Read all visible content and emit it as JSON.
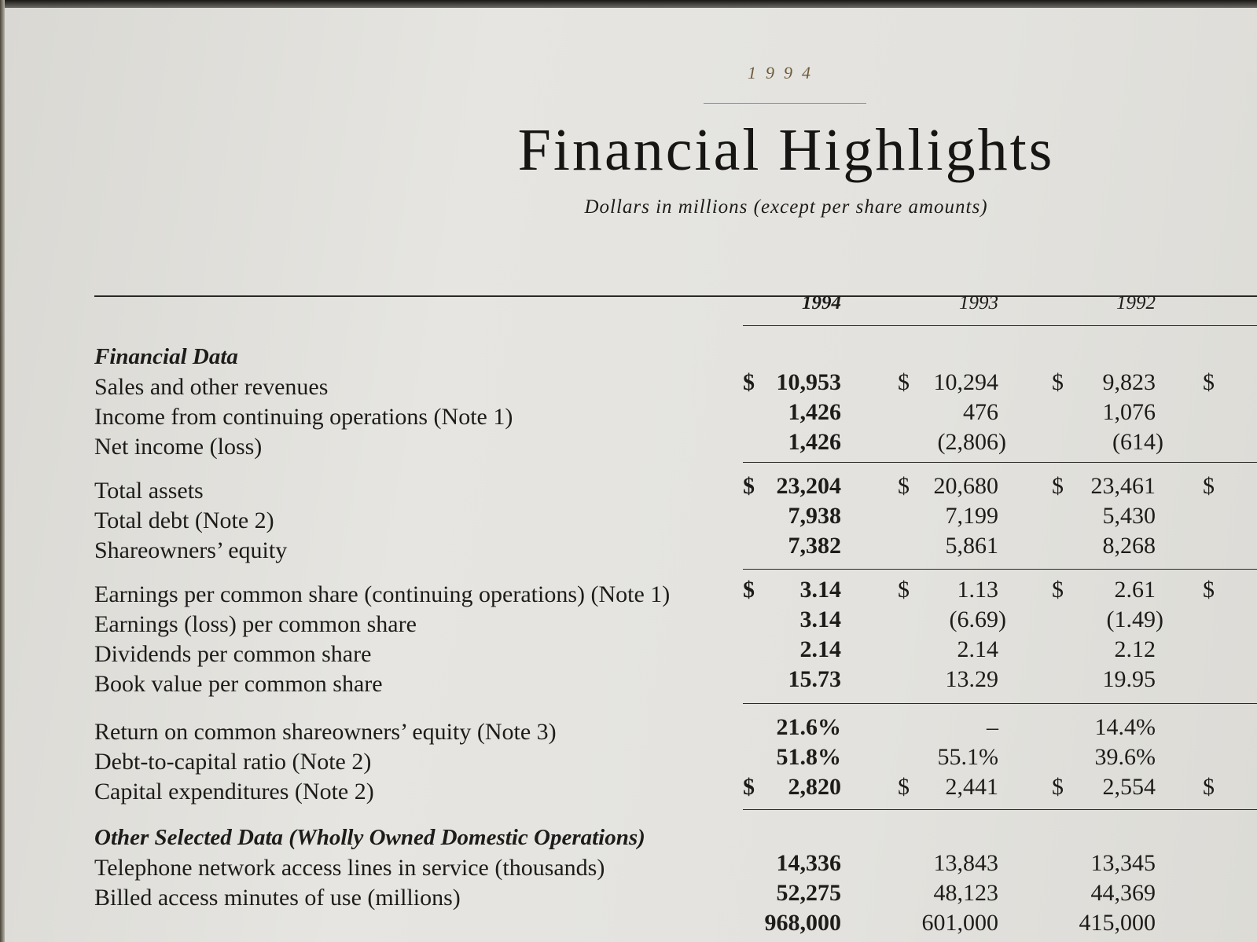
{
  "header": {
    "year": "1994",
    "title": "Financial Highlights",
    "subtitle": "Dollars in millions (except per share amounts)"
  },
  "table": {
    "columns": [
      "1994",
      "1993",
      "1992"
    ],
    "groups": [
      {
        "heading": "Financial Data",
        "rows": [
          {
            "label": "Sales and other revenues",
            "cells": [
              {
                "currency": "$",
                "amount": "10,953"
              },
              {
                "currency": "$",
                "amount": "10,294"
              },
              {
                "currency": "$",
                "amount": "9,823"
              },
              {
                "currency": "$"
              }
            ]
          },
          {
            "label": "Income from continuing operations (Note 1)",
            "cells": [
              {
                "amount": "1,426"
              },
              {
                "amount": "476"
              },
              {
                "amount": "1,076"
              }
            ]
          },
          {
            "label": "Net income (loss)",
            "cells": [
              {
                "amount": "1,426"
              },
              {
                "amount": "(2,806)"
              },
              {
                "amount": "(614)"
              }
            ]
          }
        ]
      },
      {
        "rows": [
          {
            "label": "Total assets",
            "cells": [
              {
                "currency": "$",
                "amount": "23,204"
              },
              {
                "currency": "$",
                "amount": "20,680"
              },
              {
                "currency": "$",
                "amount": "23,461"
              },
              {
                "currency": "$"
              }
            ]
          },
          {
            "label": "Total debt (Note 2)",
            "cells": [
              {
                "amount": "7,938"
              },
              {
                "amount": "7,199"
              },
              {
                "amount": "5,430"
              }
            ]
          },
          {
            "label": "Shareowners’ equity",
            "cells": [
              {
                "amount": "7,382"
              },
              {
                "amount": "5,861"
              },
              {
                "amount": "8,268"
              }
            ]
          }
        ]
      },
      {
        "rows": [
          {
            "label": "Earnings per common share (continuing operations) (Note 1)",
            "cells": [
              {
                "currency": "$",
                "amount": "3.14"
              },
              {
                "currency": "$",
                "amount": "1.13"
              },
              {
                "currency": "$",
                "amount": "2.61"
              },
              {
                "currency": "$"
              }
            ]
          },
          {
            "label": "Earnings (loss) per common share",
            "cells": [
              {
                "amount": "3.14"
              },
              {
                "amount": "(6.69)"
              },
              {
                "amount": "(1.49)"
              }
            ]
          },
          {
            "label": "Dividends per common share",
            "cells": [
              {
                "amount": "2.14"
              },
              {
                "amount": "2.14"
              },
              {
                "amount": "2.12"
              }
            ]
          },
          {
            "label": "Book value per common share",
            "cells": [
              {
                "amount": "15.73"
              },
              {
                "amount": "13.29"
              },
              {
                "amount": "19.95"
              }
            ]
          }
        ]
      },
      {
        "rows": [
          {
            "label": "Return on common shareowners’ equity (Note 3)",
            "cells": [
              {
                "amount": "21.6%"
              },
              {
                "amount": "–"
              },
              {
                "amount": "14.4%"
              }
            ]
          },
          {
            "label": "Debt-to-capital ratio (Note 2)",
            "cells": [
              {
                "amount": "51.8%"
              },
              {
                "amount": "55.1%"
              },
              {
                "amount": "39.6%"
              }
            ]
          },
          {
            "label": "Capital expenditures (Note 2)",
            "cells": [
              {
                "currency": "$",
                "amount": "2,820"
              },
              {
                "currency": "$",
                "amount": "2,441"
              },
              {
                "currency": "$",
                "amount": "2,554"
              },
              {
                "currency": "$"
              }
            ]
          }
        ]
      },
      {
        "heading": "Other Selected Data (Wholly Owned Domestic Operations)",
        "rows": [
          {
            "label": "Telephone network access lines in service (thousands)",
            "cells": [
              {
                "amount": "14,336"
              },
              {
                "amount": "13,843"
              },
              {
                "amount": "13,345"
              }
            ]
          },
          {
            "label": "Billed access minutes of use (millions)",
            "cells": [
              {
                "amount": "52,275"
              },
              {
                "amount": "48,123"
              },
              {
                "amount": "44,369"
              }
            ]
          },
          {
            "cells": [
              {
                "amount": "968,000"
              },
              {
                "amount": "601,000"
              },
              {
                "amount": "415,000"
              }
            ]
          }
        ]
      }
    ]
  }
}
